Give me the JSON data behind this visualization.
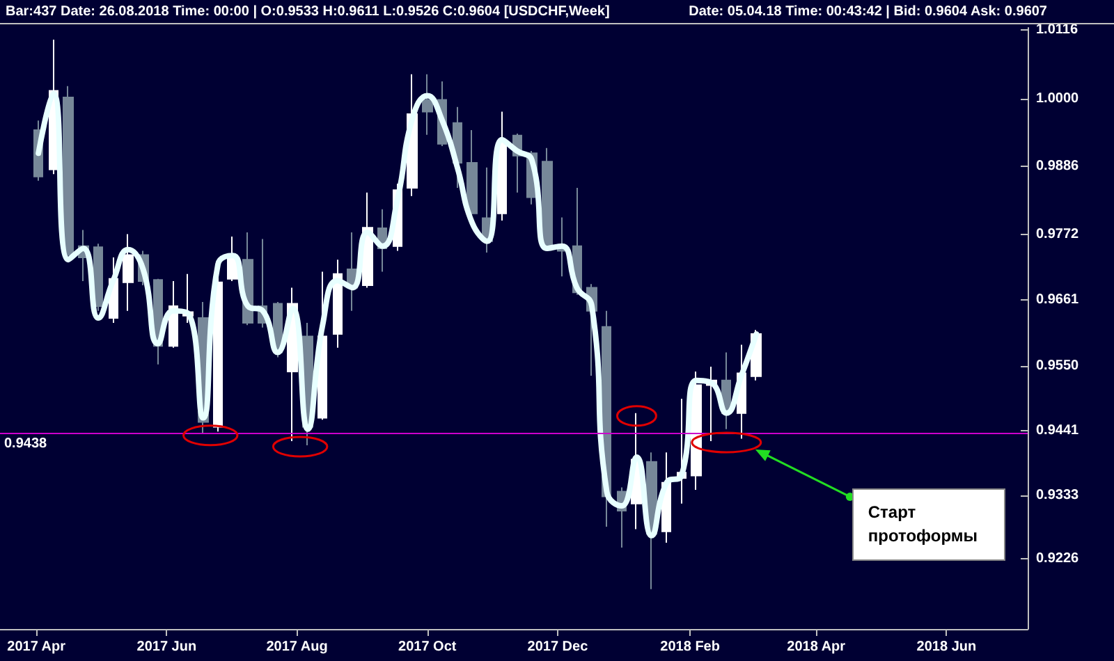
{
  "chart_data": {
    "type": "candlestick",
    "annotations": [
      "Bar:437 Date: 26.08.2018 Time: 00:00 | O:0.9533 H:0.9611 L:0.9526 C:0.9604 [USDCHF,Week]",
      "Date: 05.04.18 Time: 00:43:42 | Bid: 0.9604 Ask: 0.9607",
      "Старт протоформы"
    ],
    "x": [
      "2017-04-02",
      "2017-04-09",
      "2017-04-16",
      "2017-04-23",
      "2017-04-30",
      "2017-05-07",
      "2017-05-14",
      "2017-05-21",
      "2017-05-28",
      "2017-06-04",
      "2017-06-11",
      "2017-06-18",
      "2017-06-25",
      "2017-07-02",
      "2017-07-09",
      "2017-07-16",
      "2017-07-23",
      "2017-07-30",
      "2017-08-06",
      "2017-08-13",
      "2017-08-20",
      "2017-08-27",
      "2017-09-03",
      "2017-09-10",
      "2017-09-17",
      "2017-09-24",
      "2017-10-01",
      "2017-10-08",
      "2017-10-15",
      "2017-10-22",
      "2017-10-29",
      "2017-11-05",
      "2017-11-12",
      "2017-11-19",
      "2017-11-26",
      "2017-12-03",
      "2017-12-10",
      "2017-12-17",
      "2017-12-24",
      "2017-12-31",
      "2018-01-07",
      "2018-01-14",
      "2018-01-21",
      "2018-01-28",
      "2018-02-04",
      "2018-02-11",
      "2018-02-18",
      "2018-02-25",
      "2018-03-04"
    ],
    "xlim": [
      "2017-03-15",
      "2018-07-09"
    ],
    "xticks": [
      {
        "value": "2017-04-01",
        "label": "2017 Apr"
      },
      {
        "value": "2017-06-01",
        "label": "2017 Jun"
      },
      {
        "value": "2017-08-01",
        "label": "2017 Aug"
      },
      {
        "value": "2017-10-01",
        "label": "2017 Oct"
      },
      {
        "value": "2017-12-01",
        "label": "2017 Dec"
      },
      {
        "value": "2018-02-01",
        "label": "2018 Feb"
      },
      {
        "value": "2018-04-01",
        "label": "2018 Apr"
      },
      {
        "value": "2018-06-01",
        "label": "2018 Jun"
      }
    ],
    "ylim": [
      0.9108,
      1.0119
    ],
    "yticks": [
      1.0116,
      {
        "value": 1.0,
        "label": "1.0000"
      },
      0.9886,
      0.9772,
      0.9661,
      {
        "value": 0.955,
        "label": "0.9550"
      },
      0.9441,
      0.9333,
      0.9226
    ],
    "ref_lines": [
      {
        "axis": "y",
        "value": 0.9438,
        "label": "0.9438",
        "color": "#cc00cc"
      }
    ],
    "marker": "none",
    "series": [
      {
        "ohlc": [
          [
            0.9947,
            0.9963,
            0.9862,
            0.9869
          ],
          [
            0.9881,
            1.0099,
            0.9873,
            1.0013
          ],
          [
            1.0002,
            1.0021,
            0.9733,
            0.9737
          ],
          [
            0.9752,
            0.9779,
            0.9693,
            0.9733
          ],
          [
            0.975,
            0.9756,
            0.9643,
            0.9651
          ],
          [
            0.9631,
            0.9733,
            0.9623,
            0.9697
          ],
          [
            0.9691,
            0.9772,
            0.9643,
            0.9737
          ],
          [
            0.9737,
            0.9744,
            0.9686,
            0.9693
          ],
          [
            0.9695,
            0.9697,
            0.9553,
            0.9584
          ],
          [
            0.9584,
            0.9693,
            0.9581,
            0.9651
          ],
          [
            0.9635,
            0.9705,
            0.9623,
            0.9641
          ],
          [
            0.9631,
            0.9658,
            0.9436,
            0.9456
          ],
          [
            0.9448,
            0.9729,
            0.944,
            0.9691
          ],
          [
            0.9697,
            0.9768,
            0.9693,
            0.9733
          ],
          [
            0.9729,
            0.9775,
            0.9619,
            0.9623
          ],
          [
            0.9651,
            0.9764,
            0.9615,
            0.9623
          ],
          [
            0.9655,
            0.9658,
            0.9565,
            0.9573
          ],
          [
            0.9541,
            0.9682,
            0.9424,
            0.9655
          ],
          [
            0.96,
            0.9623,
            0.9417,
            0.9448
          ],
          [
            0.9463,
            0.9709,
            0.946,
            0.96
          ],
          [
            0.9604,
            0.9729,
            0.9581,
            0.9705
          ],
          [
            0.9713,
            0.9775,
            0.9643,
            0.9682
          ],
          [
            0.9686,
            0.9842,
            0.9682,
            0.9783
          ],
          [
            0.9782,
            0.9814,
            0.9709,
            0.9748
          ],
          [
            0.9752,
            0.9857,
            0.9744,
            0.9846
          ],
          [
            0.985,
            1.0041,
            0.9836,
            0.9974
          ],
          [
            0.9998,
            1.0041,
            0.9939,
            0.9978
          ],
          [
            0.9998,
            1.0029,
            0.992,
            0.9924
          ],
          [
            0.9959,
            0.9986,
            0.985,
            0.9892
          ],
          [
            0.9892,
            0.9947,
            0.9803,
            0.9807
          ],
          [
            0.9799,
            0.9884,
            0.9741,
            0.976
          ],
          [
            0.9807,
            0.9978,
            0.9795,
            0.9927
          ],
          [
            0.9938,
            0.9941,
            0.9842,
            0.9904
          ],
          [
            0.9908,
            0.9912,
            0.9822,
            0.9834
          ],
          [
            0.9894,
            0.9917,
            0.9746,
            0.9752
          ],
          [
            0.9752,
            0.98,
            0.9701,
            0.9744
          ],
          [
            0.9752,
            0.985,
            0.967,
            0.9674
          ],
          [
            0.9682,
            0.9688,
            0.9534,
            0.9643
          ],
          [
            0.9616,
            0.9643,
            0.928,
            0.9331
          ],
          [
            0.9339,
            0.9346,
            0.9245,
            0.9307
          ],
          [
            0.9319,
            0.9471,
            0.9276,
            0.9393
          ],
          [
            0.9389,
            0.9405,
            0.9175,
            0.9268
          ],
          [
            0.9272,
            0.9405,
            0.9253,
            0.9354
          ],
          [
            0.9362,
            0.9495,
            0.9319,
            0.9371
          ],
          [
            0.9366,
            0.9541,
            0.9342,
            0.9518
          ],
          [
            0.9518,
            0.9549,
            0.9424,
            0.9526
          ],
          [
            0.9526,
            0.9573,
            0.9444,
            0.9471
          ],
          [
            0.9471,
            0.9586,
            0.9428,
            0.9538
          ],
          [
            0.9533,
            0.9611,
            0.9526,
            0.9604
          ]
        ],
        "colors": [
          "#778899",
          "#ffffff",
          "#778899",
          "#778899",
          "#778899",
          "#ffffff",
          "#ffffff",
          "#778899",
          "#778899",
          "#ffffff",
          "#ffffff",
          "#778899",
          "#ffffff",
          "#ffffff",
          "#778899",
          "#778899",
          "#778899",
          "#ffffff",
          "#778899",
          "#ffffff",
          "#ffffff",
          "#778899",
          "#ffffff",
          "#778899",
          "#ffffff",
          "#ffffff",
          "#778899",
          "#778899",
          "#778899",
          "#778899",
          "#778899",
          "#ffffff",
          "#778899",
          "#778899",
          "#778899",
          "#778899",
          "#778899",
          "#778899",
          "#778899",
          "#778899",
          "#ffffff",
          "#778899",
          "#ffffff",
          "#ffffff",
          "#ffffff",
          "#ffffff",
          "#778899",
          "#ffffff",
          "#ffffff"
        ]
      },
      {
        "type": "line",
        "color": "#e8ffff",
        "values": [
          0.9908,
          1.0009,
          0.9729,
          0.9748,
          0.9631,
          0.9694,
          0.9746,
          0.9713,
          0.9588,
          0.9643,
          0.9639,
          0.9463,
          0.9721,
          0.9736,
          0.9651,
          0.9643,
          0.9573,
          0.9647,
          0.9444,
          0.9619,
          0.9694,
          0.9682,
          0.9775,
          0.9752,
          0.983,
          0.9966,
          1.0005,
          0.9963,
          0.9885,
          0.9791,
          0.976,
          0.9931,
          0.9912,
          0.9896,
          0.9748,
          0.9752,
          0.9682,
          0.9651,
          0.9339,
          0.9315,
          0.9397,
          0.9265,
          0.9354,
          0.9366,
          0.9526,
          0.9522,
          0.9471,
          0.9534,
          0.9604
        ]
      }
    ]
  }
}
